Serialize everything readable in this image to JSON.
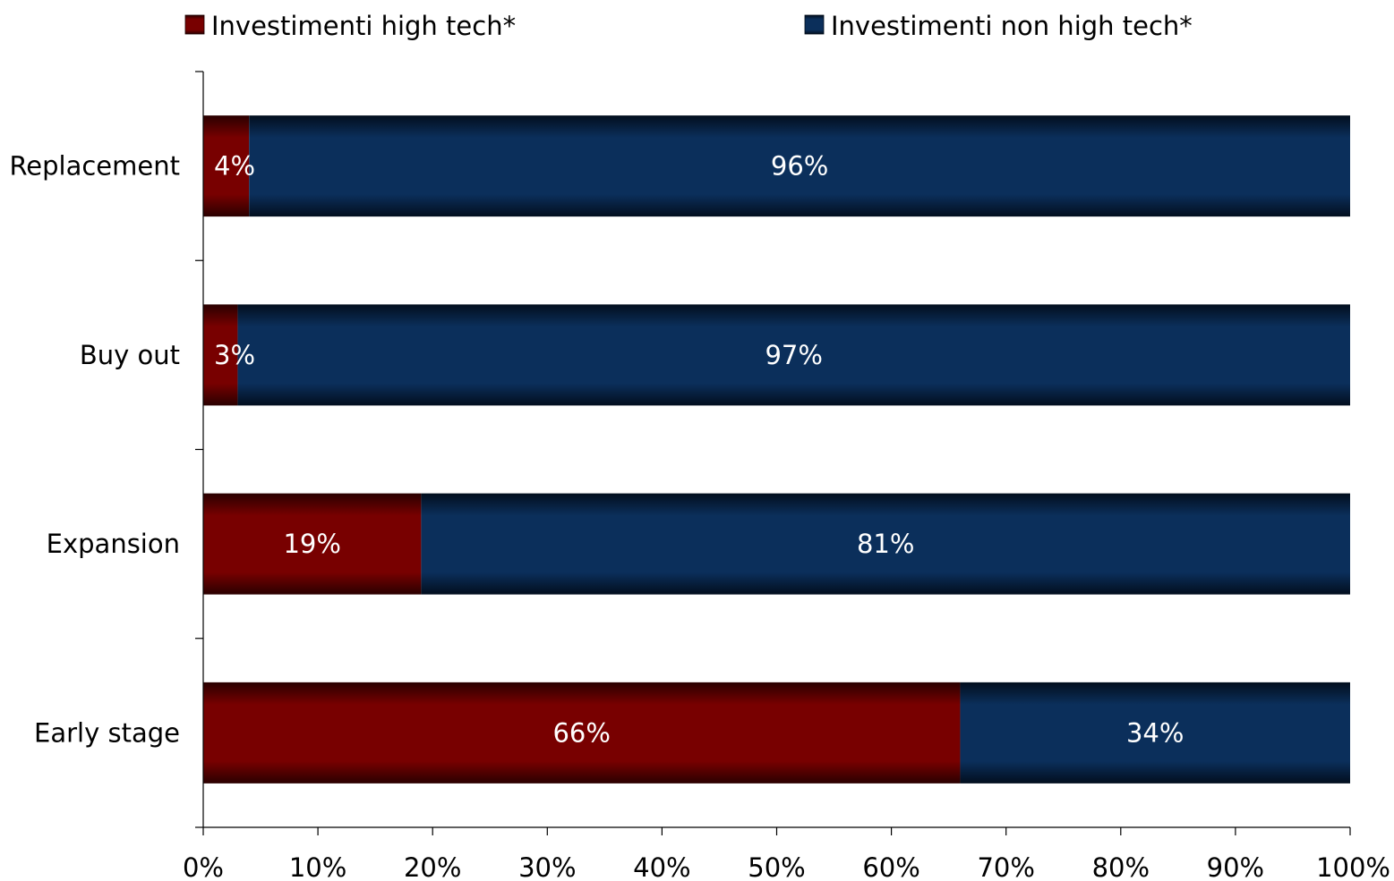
{
  "chart_data": {
    "type": "bar",
    "orientation": "horizontal",
    "stacked": true,
    "percent": true,
    "categories": [
      "Replacement",
      "Buy out",
      "Expansion",
      "Early stage"
    ],
    "series": [
      {
        "name": "Investimenti high tech*",
        "color": "#7a0000",
        "values": [
          4,
          3,
          19,
          66
        ],
        "labels": [
          "4%",
          "3%",
          "19%",
          "66%"
        ]
      },
      {
        "name": "Investimenti non high tech*",
        "color": "#0a2f5a",
        "values": [
          96,
          97,
          81,
          34
        ],
        "labels": [
          "96%",
          "97%",
          "81%",
          "34%"
        ]
      }
    ],
    "xlim": [
      0,
      100
    ],
    "x_ticks": [
      "0%",
      "10%",
      "20%",
      "30%",
      "40%",
      "50%",
      "60%",
      "70%",
      "80%",
      "90%",
      "100%"
    ],
    "legend_position": "top",
    "grid": false
  }
}
